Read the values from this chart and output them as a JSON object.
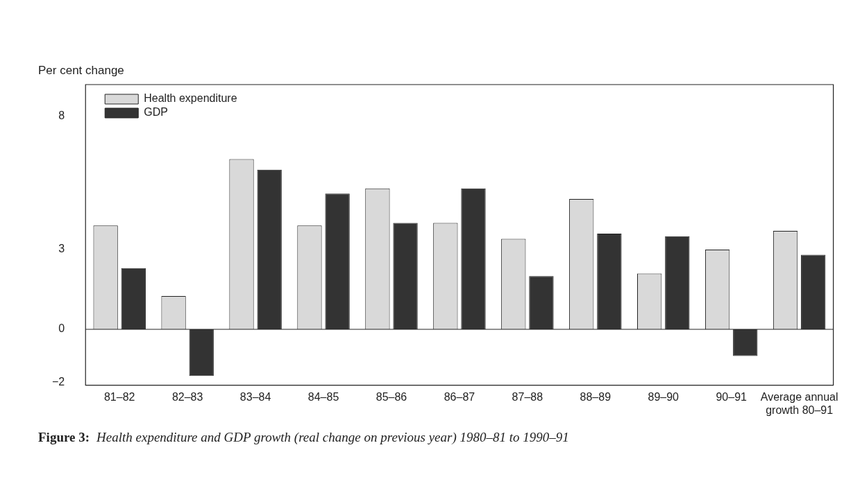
{
  "chart_data": {
    "type": "bar",
    "ylabel": "Per cent change",
    "categories": [
      "81–82",
      "82–83",
      "83–84",
      "84–85",
      "85–86",
      "86–87",
      "87–88",
      "88–89",
      "89–90",
      "90–91",
      "Average annual growth 80–91"
    ],
    "series": [
      {
        "name": "Health expenditure",
        "color": "#d9d9d9",
        "values": [
          3.9,
          1.25,
          6.4,
          3.9,
          5.3,
          4.0,
          3.4,
          4.9,
          2.1,
          3.0,
          3.7
        ]
      },
      {
        "name": "GDP",
        "color": "#333333",
        "values": [
          2.3,
          -1.75,
          6.0,
          5.1,
          4.0,
          5.3,
          2.0,
          3.6,
          3.5,
          -1.0,
          2.8
        ]
      }
    ],
    "ylim": [
      -2.1,
      9.2
    ],
    "yticks": [
      -2,
      0,
      3,
      8
    ],
    "grid": false,
    "ref_lines": [
      {
        "axis": "y",
        "value": 0,
        "color": "#222222"
      }
    ],
    "legend": "top left",
    "annotations": [
      "Figure 3: Health expenditure and GDP growth (real change on previous year) 1980–81 to 1990–91"
    ]
  }
}
